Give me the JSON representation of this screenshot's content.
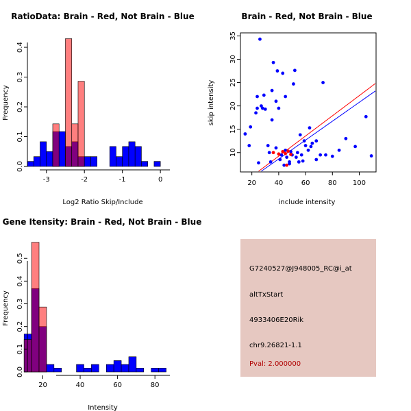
{
  "chart_data": [
    {
      "type": "histogram",
      "title": "RatioData: Brain - Red, Not Brain - Blue",
      "xlabel": "Log2 Ratio Skip/Include",
      "ylabel": "Frequency",
      "xlim": [
        -3.5,
        0.25
      ],
      "ylim": [
        0,
        0.43
      ],
      "xticks": [
        -3,
        -2,
        -1,
        0
      ],
      "yticks": [
        0.0,
        0.1,
        0.2,
        0.3,
        0.4
      ],
      "bin_width": 0.1667,
      "bin_start": -3.5,
      "series": [
        {
          "name": "Not Brain",
          "color": "#0000ff",
          "values": [
            0.017,
            0.033,
            0.083,
            0.05,
            0.117,
            0.117,
            0.067,
            0.083,
            0.033,
            0.033,
            0.033,
            0,
            0,
            0.067,
            0.033,
            0.067,
            0.083,
            0.067,
            0.017,
            0,
            0.017
          ]
        },
        {
          "name": "Brain",
          "color": "#ff0000",
          "values": [
            0,
            0,
            0,
            0,
            0.143,
            0,
            0.429,
            0.143,
            0.286,
            0,
            0,
            0,
            0,
            0,
            0,
            0,
            0,
            0,
            0,
            0,
            0
          ]
        }
      ]
    },
    {
      "type": "scatter",
      "title": "Brain - Red, Not Brain - Blue",
      "xlabel": "include intensity",
      "ylabel": "skip intensity",
      "xlim": [
        12,
        112
      ],
      "ylim": [
        6,
        35.5
      ],
      "xticks": [
        20,
        40,
        60,
        80,
        100
      ],
      "yticks": [
        10,
        15,
        20,
        25,
        30,
        35
      ],
      "series": [
        {
          "name": "Not Brain",
          "color": "#0000ff",
          "points": [
            [
              15,
              14
            ],
            [
              18,
              11.5
            ],
            [
              19,
              15.5
            ],
            [
              23,
              18.5
            ],
            [
              24,
              19.5
            ],
            [
              24,
              22
            ],
            [
              26,
              34.3
            ],
            [
              27,
              20
            ],
            [
              28,
              19.5
            ],
            [
              29,
              22.3
            ],
            [
              30,
              19.3
            ],
            [
              32,
              11.5
            ],
            [
              33,
              10
            ],
            [
              34,
              8
            ],
            [
              35,
              23.3
            ],
            [
              35,
              17
            ],
            [
              36,
              29.3
            ],
            [
              38,
              21
            ],
            [
              39,
              27.5
            ],
            [
              40,
              19.5
            ],
            [
              41,
              8.5
            ],
            [
              42,
              9.5
            ],
            [
              43,
              27
            ],
            [
              45,
              10.5
            ],
            [
              45,
              22
            ],
            [
              46,
              9
            ],
            [
              48,
              8
            ],
            [
              49,
              10.2
            ],
            [
              50,
              9.5
            ],
            [
              51,
              24.7
            ],
            [
              52,
              27.6
            ],
            [
              53,
              9
            ],
            [
              54,
              10
            ],
            [
              55,
              8
            ],
            [
              56,
              13.8
            ],
            [
              57,
              9.5
            ],
            [
              58,
              8.2
            ],
            [
              59,
              12.5
            ],
            [
              60,
              11.5
            ],
            [
              62,
              10.5
            ],
            [
              63,
              15.3
            ],
            [
              64,
              11.3
            ],
            [
              65,
              12
            ],
            [
              68,
              12.5
            ],
            [
              68,
              8.5
            ],
            [
              71,
              9.5
            ],
            [
              73,
              25
            ],
            [
              75,
              9.5
            ],
            [
              80,
              9.2
            ],
            [
              85,
              10.5
            ],
            [
              90,
              13
            ],
            [
              97,
              11.3
            ],
            [
              105,
              17.7
            ],
            [
              109,
              9.3
            ],
            [
              25,
              7.8
            ],
            [
              44,
              7.3
            ],
            [
              38,
              11
            ],
            [
              48,
              7.6
            ]
          ]
        },
        {
          "name": "Brain",
          "color": "#ff0000",
          "points": [
            [
              36,
              10
            ],
            [
              40,
              9.7
            ],
            [
              43,
              10.2
            ],
            [
              45,
              9.8
            ],
            [
              47,
              10.3
            ],
            [
              46,
              7.3
            ],
            [
              49,
              9.6
            ]
          ]
        }
      ],
      "fit_lines": [
        {
          "name": "Brain fit",
          "color": "#ff0000",
          "x": [
            25,
            112
          ],
          "y": [
            6,
            24.8
          ]
        },
        {
          "name": "Not Brain fit",
          "color": "#0000ff",
          "x": [
            27,
            112
          ],
          "y": [
            6,
            23.2
          ]
        }
      ]
    },
    {
      "type": "histogram",
      "title": "Gene Itensity: Brain - Red, Not Brain - Blue",
      "xlabel": "Intensity",
      "ylabel": "Frequency",
      "xlim": [
        7,
        88
      ],
      "ylim": [
        0,
        0.57
      ],
      "xticks": [
        20,
        40,
        60,
        80
      ],
      "yticks": [
        0.0,
        0.1,
        0.2,
        0.3,
        0.4,
        0.5
      ],
      "bin_width": 4,
      "bin_start": 10,
      "series": [
        {
          "name": "Not Brain",
          "color": "#0000ff",
          "values": [
            0.167,
            0.367,
            0.2,
            0.033,
            0.017,
            0,
            0,
            0.033,
            0.017,
            0.033,
            0,
            0.033,
            0.05,
            0.033,
            0.067,
            0.017,
            0,
            0.017,
            0.017
          ]
        },
        {
          "name": "Brain",
          "color": "#ff0000",
          "values": [
            0.143,
            0.571,
            0.286,
            0,
            0,
            0,
            0,
            0,
            0,
            0,
            0,
            0,
            0,
            0,
            0,
            0,
            0,
            0,
            0
          ]
        }
      ]
    }
  ],
  "info_box": {
    "probe_id": "G7240527@J948005_RC@i_at",
    "event_type": "altTxStart",
    "gene": "4933406E20Rik",
    "locus": "chr9.26821-1.1",
    "pval": "Pval: 2.000000"
  },
  "colors": {
    "brain": "#ff0000",
    "not_brain": "#0000ff",
    "overlap": "#800080",
    "info_bg": "#e6c8c1",
    "pval_text": "#b00000"
  }
}
